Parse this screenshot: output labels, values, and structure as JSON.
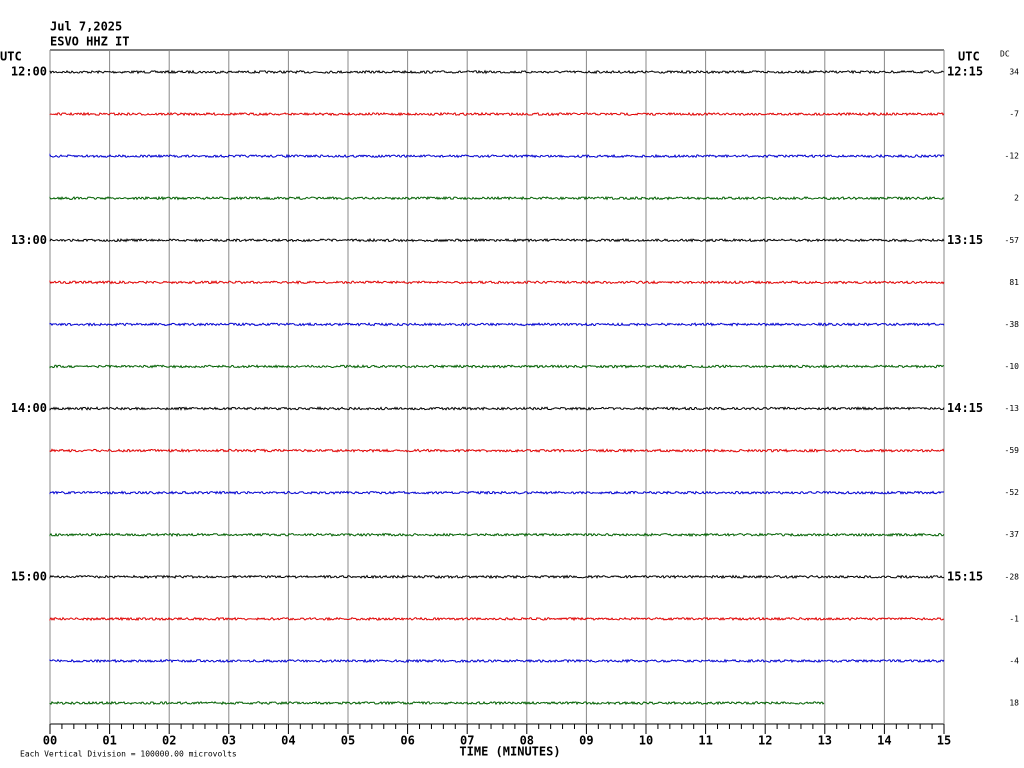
{
  "chart_data": {
    "type": "helicorder",
    "title": "Jul 7,2025",
    "subtitle": "ESVO HHZ IT",
    "left_header": "UTC",
    "right_header": "UTC",
    "dc_header": "DC",
    "x_label": "TIME (MINUTES)",
    "footnote": "Each Vertical Division = 100000.00 microvolts",
    "xlim": [
      0,
      15
    ],
    "xticks": [
      {
        "value": 0,
        "label": "00"
      },
      {
        "value": 1,
        "label": "01"
      },
      {
        "value": 2,
        "label": "02"
      },
      {
        "value": 3,
        "label": "03"
      },
      {
        "value": 4,
        "label": "04"
      },
      {
        "value": 5,
        "label": "05"
      },
      {
        "value": 6,
        "label": "06"
      },
      {
        "value": 7,
        "label": "07"
      },
      {
        "value": 8,
        "label": "08"
      },
      {
        "value": 9,
        "label": "09"
      },
      {
        "value": 10,
        "label": "10"
      },
      {
        "value": 11,
        "label": "11"
      },
      {
        "value": 12,
        "label": "12"
      },
      {
        "value": 13,
        "label": "13"
      },
      {
        "value": 14,
        "label": "14"
      },
      {
        "value": 15,
        "label": "15"
      }
    ],
    "grid": true,
    "rows": [
      {
        "left": "12:00",
        "right": "12:15",
        "dc": 34,
        "color": "#000000",
        "end": 15
      },
      {
        "left": null,
        "right": null,
        "dc": -7,
        "color": "#e00000",
        "end": 15
      },
      {
        "left": null,
        "right": null,
        "dc": -12,
        "color": "#0000d0",
        "end": 15
      },
      {
        "left": null,
        "right": null,
        "dc": 2,
        "color": "#006000",
        "end": 15
      },
      {
        "left": "13:00",
        "right": "13:15",
        "dc": -57,
        "color": "#000000",
        "end": 15
      },
      {
        "left": null,
        "right": null,
        "dc": 81,
        "color": "#e00000",
        "end": 15
      },
      {
        "left": null,
        "right": null,
        "dc": -38,
        "color": "#0000d0",
        "end": 15
      },
      {
        "left": null,
        "right": null,
        "dc": -10,
        "color": "#006000",
        "end": 15
      },
      {
        "left": "14:00",
        "right": "14:15",
        "dc": -13,
        "color": "#000000",
        "end": 15
      },
      {
        "left": null,
        "right": null,
        "dc": -59,
        "color": "#e00000",
        "end": 15
      },
      {
        "left": null,
        "right": null,
        "dc": -52,
        "color": "#0000d0",
        "end": 15
      },
      {
        "left": null,
        "right": null,
        "dc": -37,
        "color": "#006000",
        "end": 15
      },
      {
        "left": "15:00",
        "right": "15:15",
        "dc": -28,
        "color": "#000000",
        "end": 15
      },
      {
        "left": null,
        "right": null,
        "dc": -1,
        "color": "#e00000",
        "end": 15
      },
      {
        "left": null,
        "right": null,
        "dc": -4,
        "color": "#0000d0",
        "end": 15
      },
      {
        "left": null,
        "right": null,
        "dc": 18,
        "color": "#006000",
        "end": 13
      }
    ]
  }
}
